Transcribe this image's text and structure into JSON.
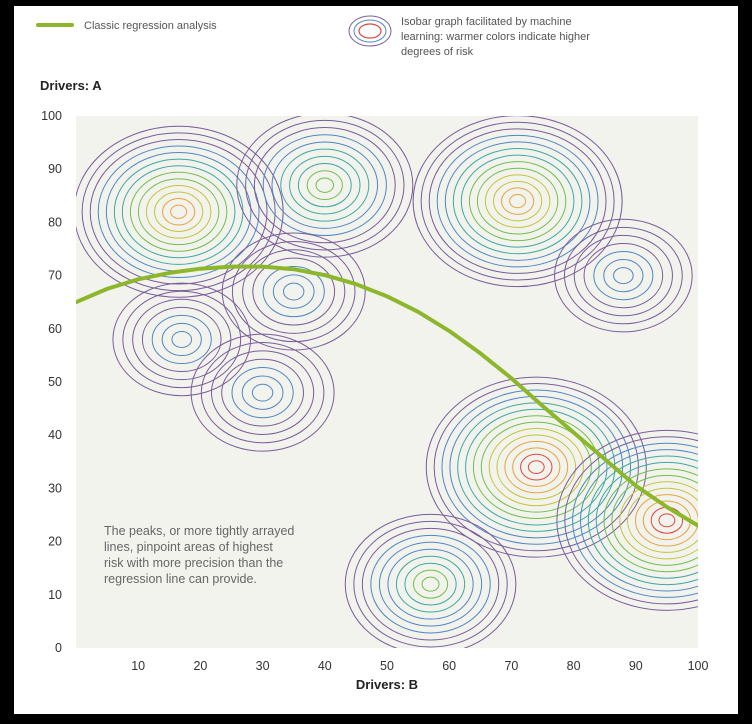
{
  "legend": {
    "regression_label": "Classic regression analysis",
    "isobar_lines": [
      "Isobar graph facilitated by machine",
      "learning: warmer colors indicate higher",
      "degrees of risk"
    ]
  },
  "note_lines": [
    "The peaks, or more tightly arrayed",
    "lines, pinpoint areas of highest",
    "risk with more precision than the",
    "regression line can provide."
  ],
  "colors": {
    "regression": "#8db72b",
    "plot_bg": "#f3f3ee",
    "isobar_palette": [
      "#7a5c9a",
      "#4f87c5",
      "#3ea8a1",
      "#6fbf4a",
      "#c4c43a",
      "#e9a23b",
      "#e0463c"
    ]
  },
  "chart_data": {
    "type": "contour",
    "title": "",
    "xlabel": "Drivers: B",
    "ylabel": "Drivers: A",
    "xlim": [
      0,
      100
    ],
    "ylim": [
      0,
      100
    ],
    "x_ticks": [
      10,
      20,
      30,
      40,
      50,
      60,
      70,
      80,
      90,
      100
    ],
    "y_ticks": [
      0,
      10,
      20,
      30,
      40,
      50,
      60,
      70,
      80,
      90,
      100
    ],
    "grid": false,
    "legend_position": "top",
    "series": [
      {
        "name": "Classic regression analysis",
        "kind": "line",
        "x": [
          0,
          5,
          10,
          15,
          20,
          25,
          30,
          35,
          40,
          45,
          50,
          55,
          60,
          65,
          70,
          75,
          80,
          85,
          90,
          95,
          100
        ],
        "y": [
          65,
          67.5,
          69.3,
          70.5,
          71.3,
          71.7,
          71.7,
          71.2,
          70.1,
          68.4,
          66.1,
          63.2,
          59.6,
          55.4,
          50.7,
          45.5,
          40.5,
          35.5,
          30.5,
          26.5,
          23
        ]
      },
      {
        "name": "Isobar graph facilitated by machine learning: warmer colors indicate higher degrees of risk",
        "kind": "isobar",
        "peaks": [
          {
            "x": 16.5,
            "y": 82,
            "intensity": 0.9
          },
          {
            "x": 40,
            "y": 87,
            "intensity": 0.6
          },
          {
            "x": 71,
            "y": 84,
            "intensity": 0.9
          },
          {
            "x": 88,
            "y": 70,
            "intensity": 0.25
          },
          {
            "x": 17,
            "y": 58,
            "intensity": 0.25
          },
          {
            "x": 30,
            "y": 48,
            "intensity": 0.3
          },
          {
            "x": 35,
            "y": 67,
            "intensity": 0.3
          },
          {
            "x": 74,
            "y": 34,
            "intensity": 1.0
          },
          {
            "x": 95,
            "y": 24,
            "intensity": 1.0
          },
          {
            "x": 57,
            "y": 12,
            "intensity": 0.55
          }
        ]
      }
    ]
  }
}
